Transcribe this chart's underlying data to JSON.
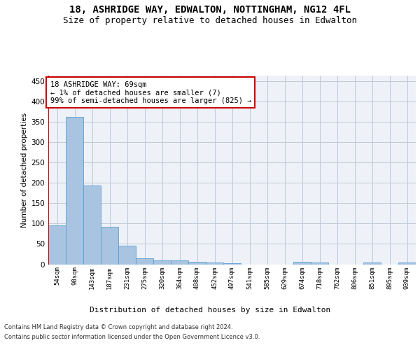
{
  "title_line1": "18, ASHRIDGE WAY, EDWALTON, NOTTINGHAM, NG12 4FL",
  "title_line2": "Size of property relative to detached houses in Edwalton",
  "xlabel_bottom": "Distribution of detached houses by size in Edwalton",
  "ylabel": "Number of detached properties",
  "footer_line1": "Contains HM Land Registry data © Crown copyright and database right 2024.",
  "footer_line2": "Contains public sector information licensed under the Open Government Licence v3.0.",
  "bar_labels": [
    "54sqm",
    "98sqm",
    "143sqm",
    "187sqm",
    "231sqm",
    "275sqm",
    "320sqm",
    "364sqm",
    "408sqm",
    "452sqm",
    "497sqm",
    "541sqm",
    "585sqm",
    "629sqm",
    "674sqm",
    "718sqm",
    "762sqm",
    "806sqm",
    "851sqm",
    "895sqm",
    "939sqm"
  ],
  "bar_values": [
    96,
    362,
    193,
    93,
    45,
    14,
    10,
    10,
    6,
    5,
    2,
    0,
    0,
    0,
    6,
    5,
    0,
    0,
    5,
    0,
    4
  ],
  "bar_color": "#a8c4e0",
  "bar_edge_color": "#5a9fd4",
  "annotation_text": "18 ASHRIDGE WAY: 69sqm\n← 1% of detached houses are smaller (7)\n99% of semi-detached houses are larger (825) →",
  "annotation_box_color": "#ffffff",
  "annotation_box_edge_color": "#cc0000",
  "ylim": [
    0,
    465
  ],
  "yticks": [
    0,
    50,
    100,
    150,
    200,
    250,
    300,
    350,
    400,
    450
  ],
  "grid_color": "#c0c8d8",
  "bg_color": "#eef2f8",
  "marker_color": "#cc0000",
  "title_fontsize": 10,
  "subtitle_fontsize": 9
}
